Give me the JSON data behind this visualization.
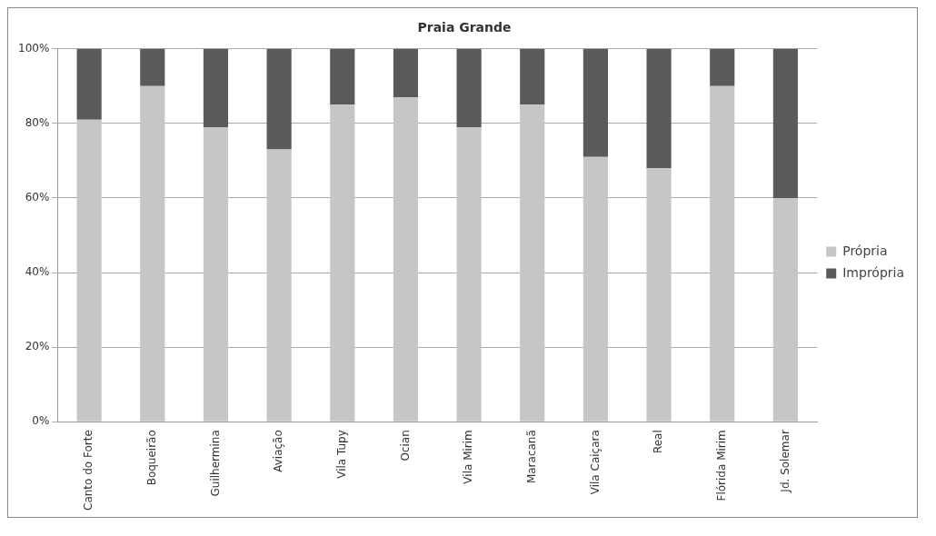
{
  "chart_data": {
    "type": "bar",
    "title": "Praia Grande",
    "stacked": true,
    "categories": [
      "Canto do Forte",
      "Boqueirão",
      "Guilhermina",
      "Aviação",
      "Vila Tupy",
      "Ocian",
      "Vila Mirim",
      "Maracanã",
      "Vila Caiçara",
      "Real",
      "Flórida Mirim",
      "Jd. Solemar"
    ],
    "series": [
      {
        "name": "Própria",
        "color": "#c6c6c6",
        "values": [
          81,
          90,
          79,
          73,
          85,
          87,
          79,
          85,
          71,
          68,
          90,
          60
        ]
      },
      {
        "name": "Imprópria",
        "color": "#5a5a5a",
        "values": [
          19,
          10,
          21,
          27,
          15,
          13,
          21,
          15,
          29,
          32,
          10,
          40
        ]
      }
    ],
    "ylim": [
      0,
      100
    ],
    "yticks": [
      {
        "value": 0,
        "label": "0%"
      },
      {
        "value": 20,
        "label": "20%"
      },
      {
        "value": 40,
        "label": "40%"
      },
      {
        "value": 60,
        "label": "60%"
      },
      {
        "value": 80,
        "label": "80%"
      },
      {
        "value": 100,
        "label": "100%"
      }
    ],
    "grid": "y",
    "legend": "right"
  }
}
